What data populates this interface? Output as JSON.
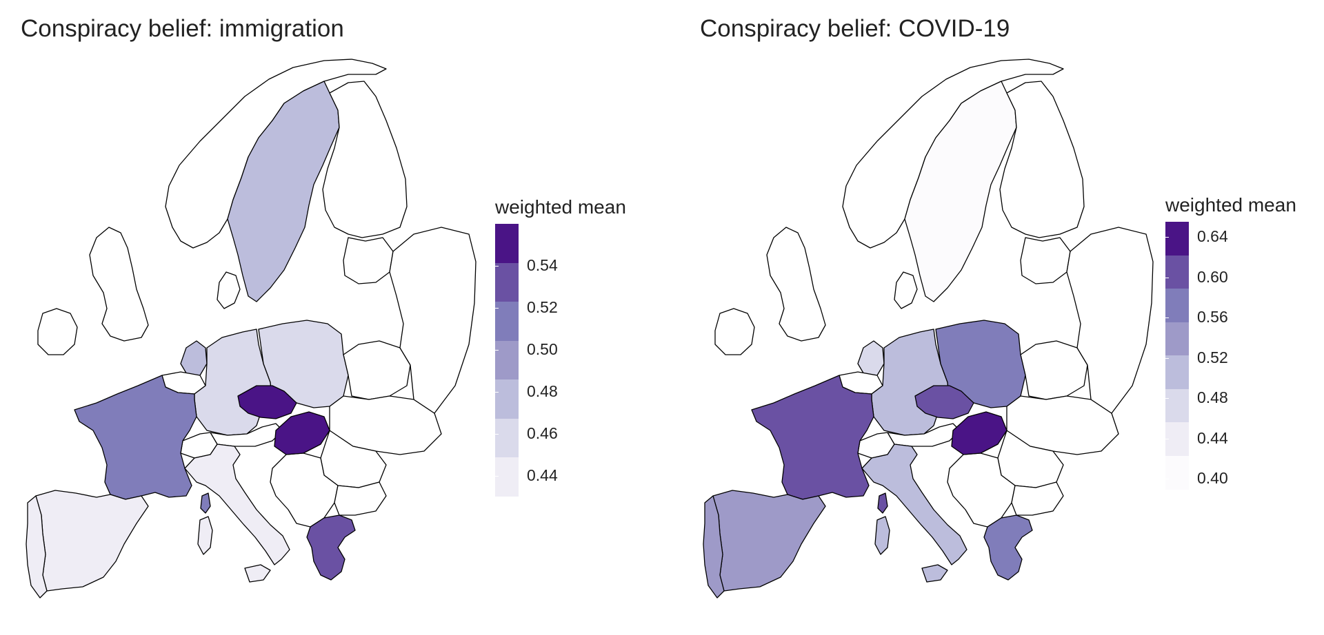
{
  "panels": [
    {
      "title": "Conspiracy belief: immigration",
      "legend": {
        "title": "weighted mean",
        "ticks": [
          "0.54",
          "0.52",
          "0.50",
          "0.48",
          "0.46",
          "0.44"
        ],
        "colors": [
          "#4a1486",
          "#6a51a3",
          "#807dba",
          "#9e9ac8",
          "#bcbddc",
          "#dadaeb",
          "#efedf5"
        ],
        "range": [
          0.43,
          0.56
        ]
      },
      "countries": {
        "sweden": "#bcbddc",
        "denmark": "#ffffff",
        "netherlands": "#bcbddc",
        "belgium": "#ffffff",
        "germany": "#dadaeb",
        "poland": "#dadaeb",
        "czechia": "#4a1486",
        "austria": "#ffffff",
        "hungary": "#4a1486",
        "france": "#807dba",
        "spain": "#efedf5",
        "portugal": "#efedf5",
        "italy": "#efedf5",
        "sardinia": "#efedf5",
        "sicily": "#efedf5",
        "corsica": "#807dba",
        "greece": "#6a51a3",
        "switzerland": "#ffffff",
        "uk": "#ffffff",
        "ireland": "#ffffff",
        "norway": "#ffffff",
        "finland": "#ffffff"
      }
    },
    {
      "title": "Conspiracy belief: COVID-19",
      "legend": {
        "title": "weighted mean",
        "ticks": [
          "0.64",
          "0.60",
          "0.56",
          "0.52",
          "0.48",
          "0.44",
          "0.40"
        ],
        "colors": [
          "#4a1486",
          "#6a51a3",
          "#807dba",
          "#9e9ac8",
          "#bcbddc",
          "#dadaeb",
          "#efedf5",
          "#fcfbfd"
        ],
        "range": [
          0.39,
          0.655
        ]
      },
      "countries": {
        "sweden": "#fcfbfd",
        "denmark": "#ffffff",
        "netherlands": "#dadaeb",
        "belgium": "#ffffff",
        "germany": "#bcbddc",
        "poland": "#807dba",
        "czechia": "#6a51a3",
        "austria": "#ffffff",
        "hungary": "#4a1486",
        "france": "#6a51a3",
        "spain": "#9e9ac8",
        "portugal": "#9e9ac8",
        "italy": "#bcbddc",
        "sardinia": "#bcbddc",
        "sicily": "#bcbddc",
        "corsica": "#6a51a3",
        "greece": "#807dba",
        "switzerland": "#ffffff",
        "uk": "#ffffff",
        "ireland": "#ffffff",
        "norway": "#ffffff",
        "finland": "#ffffff"
      }
    }
  ]
}
